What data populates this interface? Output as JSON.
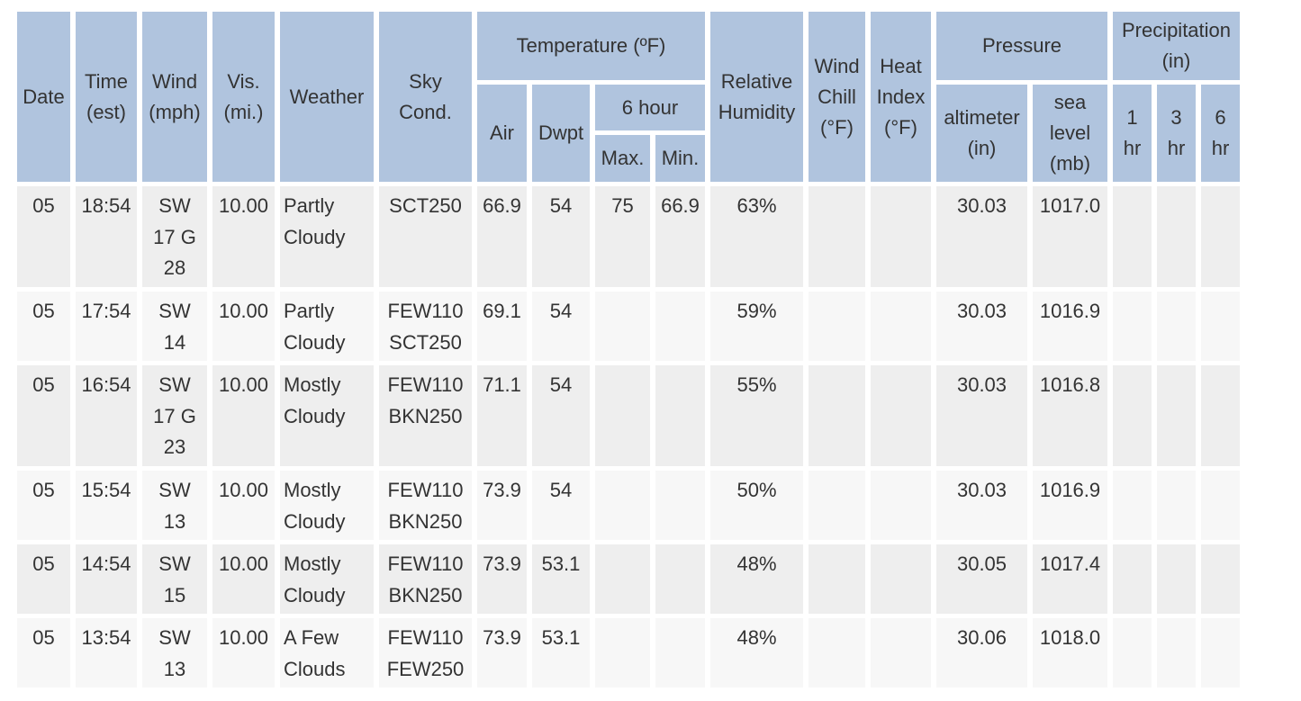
{
  "header": {
    "date": "Date",
    "time": "Time\n(est)",
    "wind": "Wind\n(mph)",
    "vis": "Vis.\n(mi.)",
    "weather": "Weather",
    "sky": "Sky\nCond.",
    "temperature": "Temperature (ºF)",
    "air": "Air",
    "dwpt": "Dwpt",
    "six_hour": "6 hour",
    "max": "Max.",
    "min": "Min.",
    "rel_humidity": "Relative\nHumidity",
    "wind_chill": "Wind\nChill\n(°F)",
    "heat_index": "Heat\nIndex\n(°F)",
    "pressure": "Pressure",
    "altimeter": "altimeter\n(in)",
    "sea_level": "sea\nlevel\n(mb)",
    "precipitation": "Precipitation\n(in)",
    "p1": "1\nhr",
    "p3": "3\nhr",
    "p6": "6\nhr"
  },
  "rows": [
    {
      "date": "05",
      "time": "18:54",
      "wind": "SW\n17 G\n28",
      "vis": "10.00",
      "weather": "Partly\nCloudy",
      "sky": "SCT250",
      "air": "66.9",
      "dwpt": "54",
      "max": "75",
      "min": "66.9",
      "rh": "63%",
      "wind_chill": "",
      "heat_index": "",
      "altimeter": "30.03",
      "sea_level": "1017.0",
      "p1": "",
      "p3": "",
      "p6": ""
    },
    {
      "date": "05",
      "time": "17:54",
      "wind": "SW\n14",
      "vis": "10.00",
      "weather": "Partly\nCloudy",
      "sky": "FEW110\nSCT250",
      "air": "69.1",
      "dwpt": "54",
      "max": "",
      "min": "",
      "rh": "59%",
      "wind_chill": "",
      "heat_index": "",
      "altimeter": "30.03",
      "sea_level": "1016.9",
      "p1": "",
      "p3": "",
      "p6": ""
    },
    {
      "date": "05",
      "time": "16:54",
      "wind": "SW\n17 G\n23",
      "vis": "10.00",
      "weather": "Mostly\nCloudy",
      "sky": "FEW110\nBKN250",
      "air": "71.1",
      "dwpt": "54",
      "max": "",
      "min": "",
      "rh": "55%",
      "wind_chill": "",
      "heat_index": "",
      "altimeter": "30.03",
      "sea_level": "1016.8",
      "p1": "",
      "p3": "",
      "p6": ""
    },
    {
      "date": "05",
      "time": "15:54",
      "wind": "SW\n13",
      "vis": "10.00",
      "weather": "Mostly\nCloudy",
      "sky": "FEW110\nBKN250",
      "air": "73.9",
      "dwpt": "54",
      "max": "",
      "min": "",
      "rh": "50%",
      "wind_chill": "",
      "heat_index": "",
      "altimeter": "30.03",
      "sea_level": "1016.9",
      "p1": "",
      "p3": "",
      "p6": ""
    },
    {
      "date": "05",
      "time": "14:54",
      "wind": "SW\n15",
      "vis": "10.00",
      "weather": "Mostly\nCloudy",
      "sky": "FEW110\nBKN250",
      "air": "73.9",
      "dwpt": "53.1",
      "max": "",
      "min": "",
      "rh": "48%",
      "wind_chill": "",
      "heat_index": "",
      "altimeter": "30.05",
      "sea_level": "1017.4",
      "p1": "",
      "p3": "",
      "p6": ""
    },
    {
      "date": "05",
      "time": "13:54",
      "wind": "SW\n13",
      "vis": "10.00",
      "weather": "A Few\nClouds",
      "sky": "FEW110\nFEW250",
      "air": "73.9",
      "dwpt": "53.1",
      "max": "",
      "min": "",
      "rh": "48%",
      "wind_chill": "",
      "heat_index": "",
      "altimeter": "30.06",
      "sea_level": "1018.0",
      "p1": "",
      "p3": "",
      "p6": ""
    }
  ],
  "colors": {
    "header_bg": "#b0c4de",
    "row_odd": "#eeeeee",
    "row_even": "#f7f7f7",
    "text": "#333333"
  }
}
